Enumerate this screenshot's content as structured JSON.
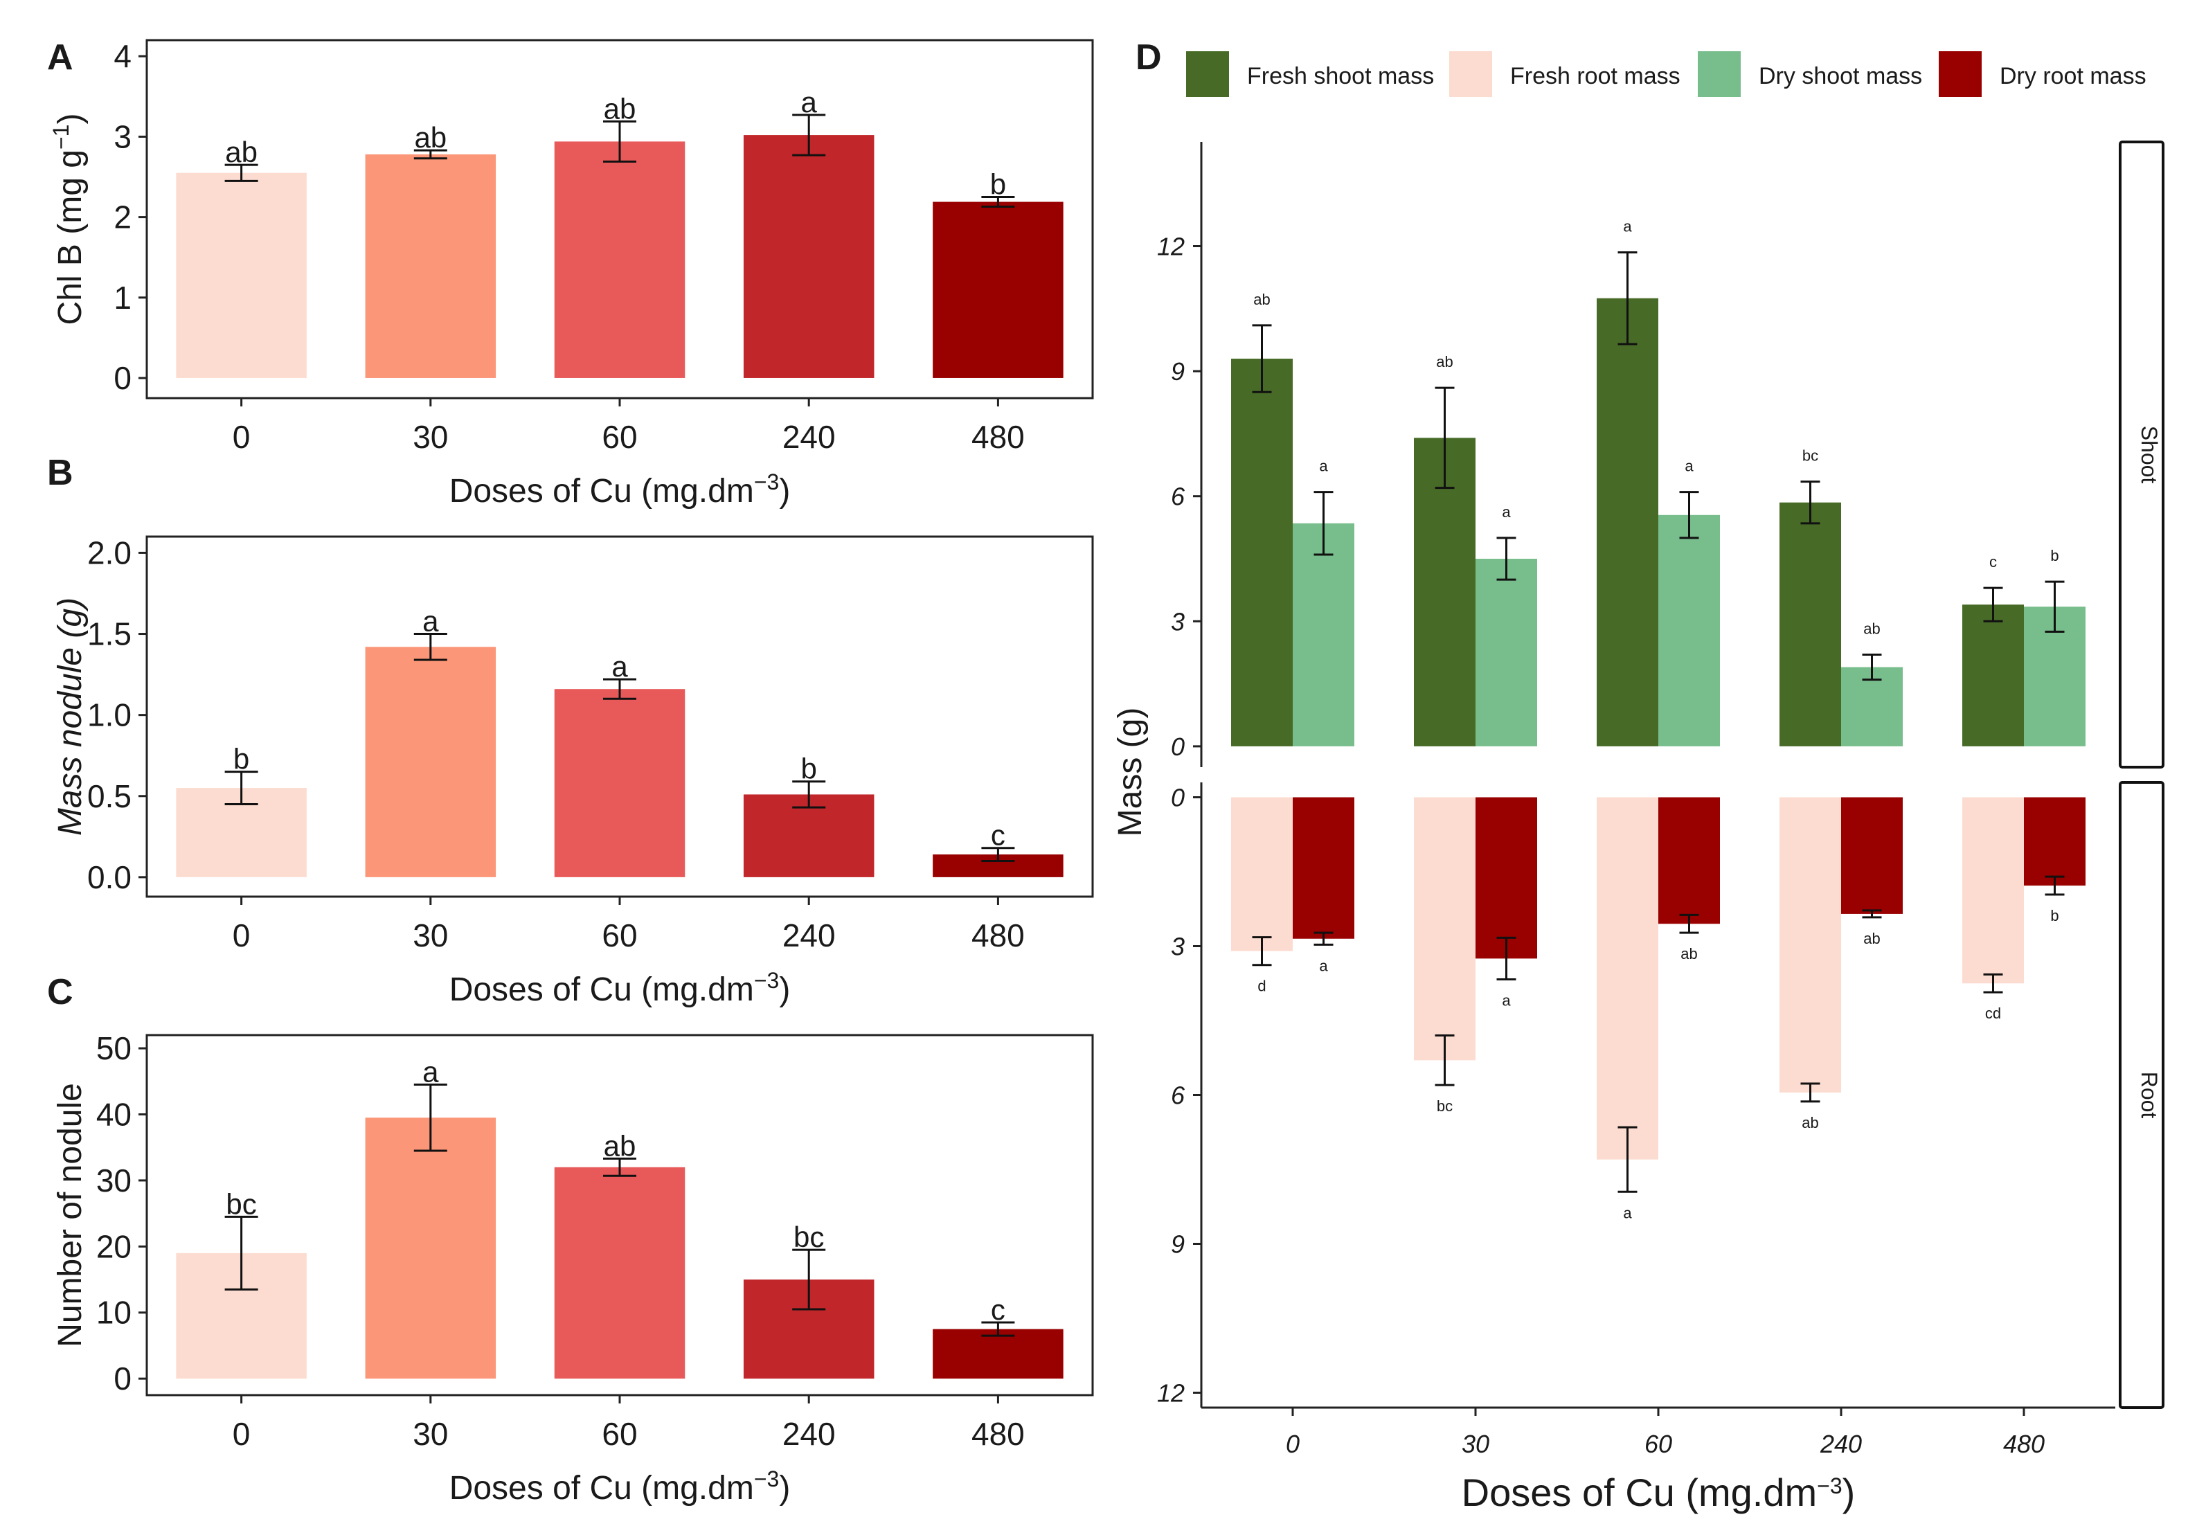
{
  "colors": {
    "dose_0": "#fcdcd0",
    "dose_30": "#fc9678",
    "dose_60": "#e85a5a",
    "dose_240": "#c0262a",
    "dose_480": "#990000",
    "fresh_shoot": "#476b27",
    "fresh_root": "#fcdcd0",
    "dry_shoot": "#78bd8c",
    "dry_root": "#990000"
  },
  "chart_data": [
    {
      "panel": "A",
      "type": "bar",
      "categories": [
        "0",
        "30",
        "60",
        "240",
        "480"
      ],
      "values": [
        2.55,
        2.78,
        2.94,
        3.02,
        2.19
      ],
      "errors": [
        0.1,
        0.05,
        0.25,
        0.25,
        0.06
      ],
      "labels": [
        "ab",
        "ab",
        "ab",
        "a",
        "b"
      ],
      "ylabel": "Chl B (mg g",
      "ylabel_sup": "−1",
      "ylabel_end": ")",
      "xlabel": "Doses of Cu (mg.dm",
      "xlabel_sup": "−3",
      "xlabel_end": ")",
      "ylim": [
        -0.25,
        4.2
      ],
      "yticks": [
        "0",
        "1",
        "2",
        "3",
        "4"
      ]
    },
    {
      "panel": "B",
      "type": "bar",
      "categories": [
        "0",
        "30",
        "60",
        "240",
        "480"
      ],
      "values": [
        0.55,
        1.42,
        1.16,
        0.51,
        0.14
      ],
      "errors": [
        0.1,
        0.08,
        0.06,
        0.08,
        0.04
      ],
      "labels": [
        "b",
        "a",
        "a",
        "b",
        "c"
      ],
      "ylabel": "Mass nodule (g)",
      "xlabel": "Doses of Cu (mg.dm",
      "xlabel_sup": "−3",
      "xlabel_end": ")",
      "ylim": [
        -0.12,
        2.1
      ],
      "yticks": [
        "0.0",
        "0.5",
        "1.0",
        "1.5",
        "2.0"
      ]
    },
    {
      "panel": "C",
      "type": "bar",
      "categories": [
        "0",
        "30",
        "60",
        "240",
        "480"
      ],
      "values": [
        19,
        39.5,
        32,
        15,
        7.5
      ],
      "errors": [
        5.5,
        5,
        1.3,
        4.5,
        1
      ],
      "labels": [
        "bc",
        "a",
        "ab",
        "bc",
        "c"
      ],
      "ylabel": "Number of nodule",
      "xlabel": "Doses of Cu (mg.dm",
      "xlabel_sup": "−3",
      "xlabel_end": ")",
      "ylim": [
        -2.5,
        52
      ],
      "yticks": [
        "0",
        "10",
        "20",
        "30",
        "40",
        "50"
      ]
    },
    {
      "panel": "D",
      "type": "bar",
      "categories": [
        "0",
        "30",
        "60",
        "240",
        "480"
      ],
      "legend": [
        "Fresh shoot mass",
        "Fresh root mass",
        "Dry shoot mass",
        "Dry root mass"
      ],
      "ylabel": "Mass (g)",
      "xlabel": "Doses of Cu (mg.dm",
      "xlabel_sup": "−3",
      "xlabel_end": ")",
      "facets": [
        {
          "name": "Shoot",
          "ylim": [
            -0.5,
            14.5
          ],
          "yticks": [
            "0",
            "3",
            "6",
            "9",
            "12"
          ],
          "series": [
            {
              "name": "Fresh shoot mass",
              "values": [
                9.3,
                7.4,
                10.75,
                5.85,
                3.4
              ],
              "errors": [
                0.8,
                1.2,
                1.1,
                0.5,
                0.4
              ],
              "labels": [
                "ab",
                "ab",
                "a",
                "bc",
                "c"
              ]
            },
            {
              "name": "Dry shoot mass",
              "values": [
                5.35,
                4.5,
                5.55,
                1.9,
                3.35
              ],
              "errors": [
                0.75,
                0.5,
                0.55,
                0.3,
                0.6
              ],
              "labels": [
                "a",
                "a",
                "a",
                "ab",
                "b"
              ]
            }
          ]
        },
        {
          "name": "Root",
          "ylim": [
            -0.3,
            12.3
          ],
          "yticks": [
            "0",
            "3",
            "6",
            "9",
            "12"
          ],
          "series": [
            {
              "name": "Fresh root mass",
              "values": [
                3.1,
                5.3,
                7.3,
                5.95,
                3.75
              ],
              "errors": [
                0.28,
                0.5,
                0.65,
                0.18,
                0.18
              ],
              "labels": [
                "d",
                "bc",
                "a",
                "ab",
                "cd"
              ]
            },
            {
              "name": "Dry root mass",
              "values": [
                2.85,
                3.25,
                2.55,
                2.35,
                1.78
              ],
              "errors": [
                0.12,
                0.42,
                0.18,
                0.07,
                0.18
              ],
              "labels": [
                "a",
                "a",
                "ab",
                "ab",
                "b"
              ]
            }
          ]
        }
      ]
    }
  ]
}
